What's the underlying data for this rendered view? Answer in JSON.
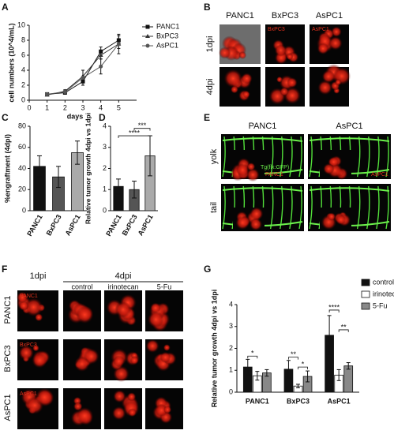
{
  "panel_labels": [
    "A",
    "B",
    "C",
    "D",
    "E",
    "F",
    "G"
  ],
  "chart_data": [
    {
      "type": "line",
      "ylabel": "cell numbers (10^4/mL)",
      "xlabel": "days",
      "x": [
        1,
        2,
        3,
        4,
        5
      ],
      "xlim": [
        0,
        6
      ],
      "xticks": [
        0,
        1,
        2,
        3,
        4,
        5
      ],
      "ylim": [
        0,
        10
      ],
      "yticks": [
        0,
        2,
        4,
        6,
        8,
        10
      ],
      "series": [
        {
          "name": "PANC1",
          "color": "#111111",
          "marker": "square",
          "values": [
            0.8,
            1.0,
            2.5,
            6.5,
            8.0
          ],
          "errors": [
            0.1,
            0.2,
            0.5,
            0.6,
            0.6
          ]
        },
        {
          "name": "BxPC3",
          "color": "#333333",
          "marker": "triangle",
          "values": [
            0.7,
            1.2,
            3.2,
            6.0,
            7.5
          ],
          "errors": [
            0.1,
            0.2,
            0.8,
            0.5,
            0.6
          ]
        },
        {
          "name": "AsPC1",
          "color": "#555555",
          "marker": "circle",
          "values": [
            0.8,
            1.1,
            3.0,
            4.5,
            7.5
          ],
          "errors": [
            0.1,
            0.2,
            1.0,
            1.0,
            1.3
          ]
        }
      ]
    },
    {
      "type": "bar",
      "ylabel": "%engraftment (4dpi)",
      "categories": [
        "PANC1",
        "BxPC3",
        "AsPC1"
      ],
      "values": [
        42,
        32,
        55
      ],
      "errors": [
        10,
        10,
        11
      ],
      "colors": [
        "#111111",
        "#555555",
        "#aaaaaa"
      ],
      "ylim": [
        0,
        80
      ],
      "yticks": [
        0,
        20,
        40,
        60,
        80
      ]
    },
    {
      "type": "bar",
      "ylabel": "Relative tumor growth 4dpi vs 1dpi",
      "categories": [
        "PANC1",
        "BxPC3",
        "AsPC1"
      ],
      "values": [
        1.15,
        1.0,
        2.6
      ],
      "errors": [
        0.35,
        0.4,
        0.95
      ],
      "colors": [
        "#111111",
        "#555555",
        "#aaaaaa"
      ],
      "ylim": [
        0,
        4
      ],
      "yticks": [
        0,
        1,
        2,
        3,
        4
      ],
      "annotations": [
        "****",
        "***"
      ]
    },
    {
      "type": "grouped_bar",
      "ylabel": "Relative tumor growth 4dpi vs 1dpi",
      "categories": [
        "PANC1",
        "BxPC3",
        "AsPC1"
      ],
      "ylim": [
        0,
        4
      ],
      "yticks": [
        0,
        1,
        2,
        3,
        4
      ],
      "series": [
        {
          "name": "control",
          "color": "#111111",
          "values": [
            1.15,
            1.05,
            2.6
          ],
          "errors": [
            0.35,
            0.4,
            0.9
          ]
        },
        {
          "name": "irinotecan",
          "color": "#ffffff",
          "values": [
            0.75,
            0.28,
            0.78
          ],
          "errors": [
            0.2,
            0.08,
            0.25
          ]
        },
        {
          "name": "5-Fu",
          "color": "#888888",
          "values": [
            0.88,
            0.72,
            1.2
          ],
          "errors": [
            0.15,
            0.25,
            0.15
          ]
        }
      ],
      "annotations": [
        "*",
        "**",
        "*",
        "****",
        "**"
      ]
    }
  ],
  "image_panels": {
    "B": {
      "columns": [
        "PANC1",
        "BxPC3",
        "AsPC1"
      ],
      "rows": [
        "1dpi",
        "4dpi"
      ],
      "inset_labels": [
        "BxPC3",
        "AsPC1"
      ]
    },
    "E": {
      "columns": [
        "PANC1",
        "AsPC1"
      ],
      "rows": [
        "yolk",
        "tail"
      ],
      "inset_labels": [
        "Tg(flk:GFP)",
        "PANC1",
        "AsPC1"
      ]
    },
    "F": {
      "groups": [
        "1dpi",
        "4dpi"
      ],
      "columns": [
        "control",
        "irinotecan",
        "5-Fu"
      ],
      "rows": [
        "PANC1",
        "BxPC3",
        "AsPC1"
      ],
      "inset_labels": [
        "PANC1",
        "BxPC3",
        "AsPC1"
      ]
    }
  }
}
